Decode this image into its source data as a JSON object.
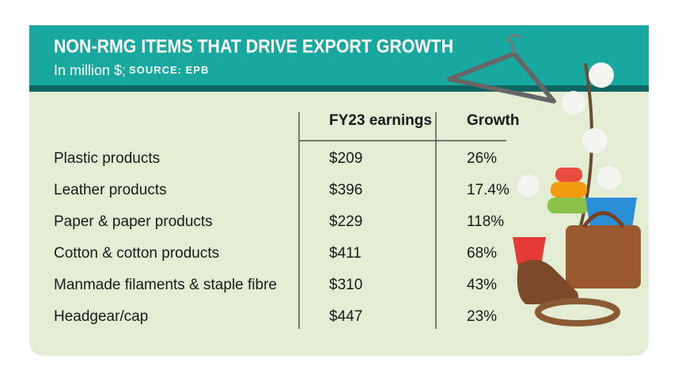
{
  "header": {
    "title": "NON-RMG ITEMS THAT DRIVE EXPORT GROWTH",
    "subtitle": "In million $;",
    "source": "SOURCE: EPB"
  },
  "table": {
    "columns": [
      "FY23 earnings",
      "Growth"
    ],
    "rows": [
      [
        "Plastic products",
        "$209",
        "26%"
      ],
      [
        "Leather products",
        "$396",
        "17.4%"
      ],
      [
        "Paper & paper products",
        "$229",
        "118%"
      ],
      [
        "Cotton & cotton products",
        "$411",
        "68%"
      ],
      [
        "Manmade filaments & staple fibre",
        "$310",
        "43%"
      ],
      [
        "Headgear/cap",
        "$447",
        "23%"
      ]
    ]
  }
}
